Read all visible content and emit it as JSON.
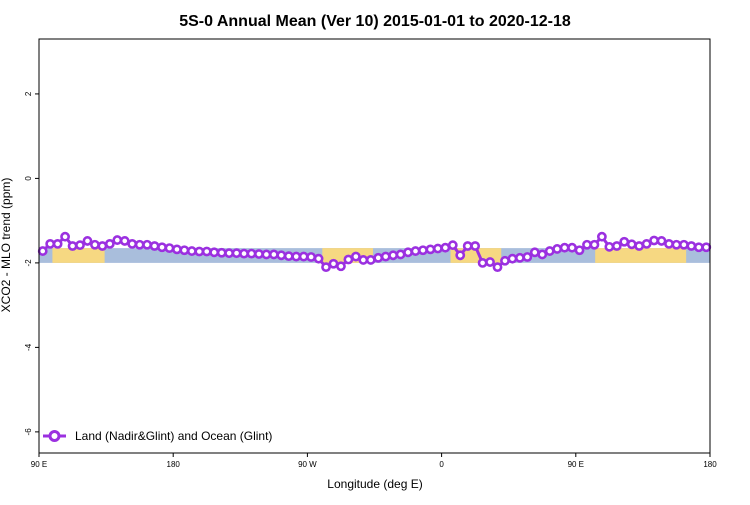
{
  "chart_data": {
    "type": "line",
    "title": "5S-0 Annual Mean (Ver 10)   2015-01-01 to 2020-12-18",
    "xlabel": "Longitude (deg E)",
    "ylabel": "XCO2 - MLO trend (ppm)",
    "xlim": [
      90,
      540
    ],
    "ylim": [
      -6.5,
      3.3
    ],
    "x_ticks": [
      {
        "value": 90,
        "label": "90 E"
      },
      {
        "value": 180,
        "label": "180"
      },
      {
        "value": 270,
        "label": "90 W"
      },
      {
        "value": 360,
        "label": "0"
      },
      {
        "value": 450,
        "label": "90 E"
      },
      {
        "value": 540,
        "label": "180"
      }
    ],
    "y_ticks": [
      {
        "value": 2,
        "label": "2"
      },
      {
        "value": 0,
        "label": "0"
      },
      {
        "value": -2,
        "label": "-2"
      },
      {
        "value": -4,
        "label": "-4"
      },
      {
        "value": -6,
        "label": "-6"
      }
    ],
    "grid": false,
    "legend": {
      "position": "bottom-left"
    },
    "colors": {
      "series": "#9b30e0",
      "ocean_band": "#a9bedc",
      "land_band": "#f6d882"
    },
    "map_band": {
      "ymin": -2.0,
      "ymax": -1.65
    },
    "land_segments": [
      [
        99,
        134
      ],
      [
        280,
        314
      ],
      [
        366,
        400
      ],
      [
        463,
        524
      ]
    ],
    "series": [
      {
        "name": "Land (Nadir&Glint) and Ocean (Glint)",
        "points": [
          [
            92.5,
            -1.72
          ],
          [
            97.5,
            -1.55
          ],
          [
            102.5,
            -1.55
          ],
          [
            107.5,
            -1.38
          ],
          [
            112.5,
            -1.6
          ],
          [
            117.5,
            -1.58
          ],
          [
            122.5,
            -1.48
          ],
          [
            127.5,
            -1.57
          ],
          [
            132.5,
            -1.6
          ],
          [
            137.5,
            -1.55
          ],
          [
            142.5,
            -1.46
          ],
          [
            147.5,
            -1.48
          ],
          [
            152.5,
            -1.55
          ],
          [
            157.5,
            -1.57
          ],
          [
            162.5,
            -1.57
          ],
          [
            167.5,
            -1.6
          ],
          [
            172.5,
            -1.63
          ],
          [
            177.5,
            -1.65
          ],
          [
            182.5,
            -1.68
          ],
          [
            187.5,
            -1.7
          ],
          [
            192.5,
            -1.72
          ],
          [
            197.5,
            -1.73
          ],
          [
            202.5,
            -1.73
          ],
          [
            207.5,
            -1.75
          ],
          [
            212.5,
            -1.76
          ],
          [
            217.5,
            -1.77
          ],
          [
            222.5,
            -1.77
          ],
          [
            227.5,
            -1.78
          ],
          [
            232.5,
            -1.78
          ],
          [
            237.5,
            -1.79
          ],
          [
            242.5,
            -1.8
          ],
          [
            247.5,
            -1.8
          ],
          [
            252.5,
            -1.82
          ],
          [
            257.5,
            -1.84
          ],
          [
            262.5,
            -1.85
          ],
          [
            267.5,
            -1.85
          ],
          [
            272.5,
            -1.86
          ],
          [
            277.5,
            -1.9
          ],
          [
            282.5,
            -2.1
          ],
          [
            287.5,
            -2.02
          ],
          [
            292.5,
            -2.08
          ],
          [
            297.5,
            -1.92
          ],
          [
            302.5,
            -1.85
          ],
          [
            307.5,
            -1.93
          ],
          [
            312.5,
            -1.93
          ],
          [
            317.5,
            -1.88
          ],
          [
            322.5,
            -1.85
          ],
          [
            327.5,
            -1.82
          ],
          [
            332.5,
            -1.8
          ],
          [
            337.5,
            -1.75
          ],
          [
            342.5,
            -1.72
          ],
          [
            347.5,
            -1.7
          ],
          [
            352.5,
            -1.68
          ],
          [
            357.5,
            -1.66
          ],
          [
            362.5,
            -1.64
          ],
          [
            367.5,
            -1.58
          ],
          [
            372.5,
            -1.82
          ],
          [
            377.5,
            -1.6
          ],
          [
            382.5,
            -1.6
          ],
          [
            387.5,
            -2.0
          ],
          [
            392.5,
            -1.98
          ],
          [
            397.5,
            -2.1
          ],
          [
            402.5,
            -1.95
          ],
          [
            407.5,
            -1.9
          ],
          [
            412.5,
            -1.88
          ],
          [
            417.5,
            -1.86
          ],
          [
            422.5,
            -1.75
          ],
          [
            427.5,
            -1.8
          ],
          [
            432.5,
            -1.72
          ],
          [
            437.5,
            -1.67
          ],
          [
            442.5,
            -1.64
          ],
          [
            447.5,
            -1.64
          ],
          [
            452.5,
            -1.7
          ],
          [
            457.5,
            -1.57
          ],
          [
            462.5,
            -1.57
          ],
          [
            467.5,
            -1.38
          ],
          [
            472.5,
            -1.62
          ],
          [
            477.5,
            -1.6
          ],
          [
            482.5,
            -1.5
          ],
          [
            487.5,
            -1.56
          ],
          [
            492.5,
            -1.6
          ],
          [
            497.5,
            -1.55
          ],
          [
            502.5,
            -1.47
          ],
          [
            507.5,
            -1.48
          ],
          [
            512.5,
            -1.55
          ],
          [
            517.5,
            -1.57
          ],
          [
            522.5,
            -1.57
          ],
          [
            527.5,
            -1.6
          ],
          [
            532.5,
            -1.63
          ],
          [
            537.5,
            -1.63
          ]
        ]
      }
    ]
  }
}
